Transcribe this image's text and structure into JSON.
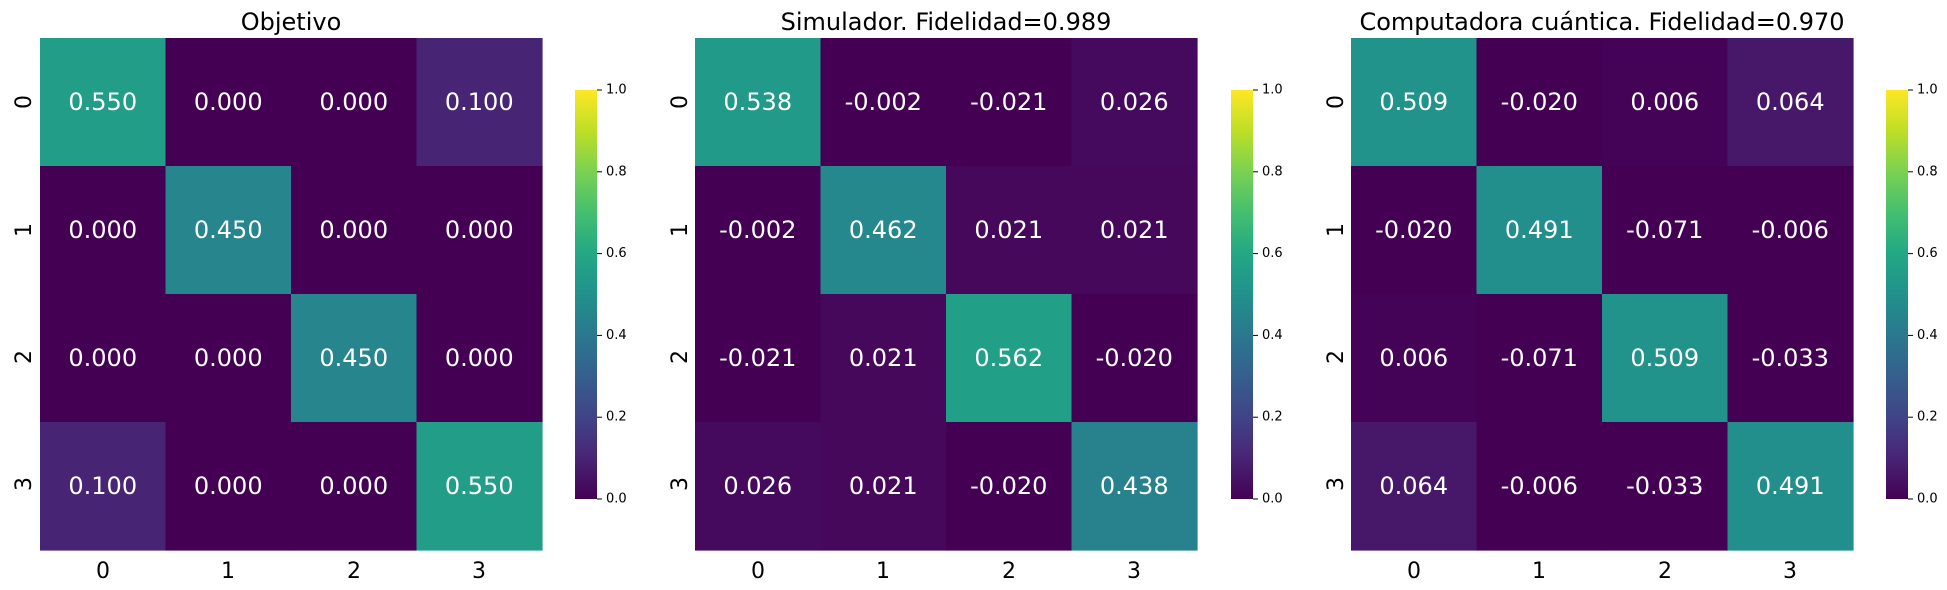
{
  "chart_data": [
    {
      "type": "heatmap",
      "title": "Objetivo",
      "x_ticks": [
        "0",
        "1",
        "2",
        "3"
      ],
      "y_ticks": [
        "0",
        "1",
        "2",
        "3"
      ],
      "values": [
        [
          0.55,
          0.0,
          0.0,
          0.1
        ],
        [
          0.0,
          0.45,
          0.0,
          0.0
        ],
        [
          0.0,
          0.0,
          0.45,
          0.0
        ],
        [
          0.1,
          0.0,
          0.0,
          0.55
        ]
      ],
      "annotations": [
        [
          "0.550",
          "0.000",
          "0.000",
          "0.100"
        ],
        [
          "0.000",
          "0.450",
          "0.000",
          "0.000"
        ],
        [
          "0.000",
          "0.000",
          "0.450",
          "0.000"
        ],
        [
          "0.100",
          "0.000",
          "0.000",
          "0.550"
        ]
      ],
      "vmin": 0.0,
      "vmax": 1.0,
      "colormap": "viridis",
      "colorbar_ticks": [
        "0.0",
        "0.2",
        "0.4",
        "0.6",
        "0.8",
        "1.0"
      ]
    },
    {
      "type": "heatmap",
      "title": "Simulador.  Fidelidad=0.989",
      "x_ticks": [
        "0",
        "1",
        "2",
        "3"
      ],
      "y_ticks": [
        "0",
        "1",
        "2",
        "3"
      ],
      "values": [
        [
          0.538,
          -0.002,
          -0.021,
          0.026
        ],
        [
          -0.002,
          0.462,
          0.021,
          0.021
        ],
        [
          -0.021,
          0.021,
          0.562,
          -0.02
        ],
        [
          0.026,
          0.021,
          -0.02,
          0.438
        ]
      ],
      "annotations": [
        [
          "0.538",
          "-0.002",
          "-0.021",
          "0.026"
        ],
        [
          "-0.002",
          "0.462",
          "0.021",
          "0.021"
        ],
        [
          "-0.021",
          "0.021",
          "0.562",
          "-0.020"
        ],
        [
          "0.026",
          "0.021",
          "-0.020",
          "0.438"
        ]
      ],
      "vmin": 0.0,
      "vmax": 1.0,
      "colormap": "viridis",
      "colorbar_ticks": [
        "0.0",
        "0.2",
        "0.4",
        "0.6",
        "0.8",
        "1.0"
      ]
    },
    {
      "type": "heatmap",
      "title": "Computadora cuántica. Fidelidad=0.970",
      "x_ticks": [
        "0",
        "1",
        "2",
        "3"
      ],
      "y_ticks": [
        "0",
        "1",
        "2",
        "3"
      ],
      "values": [
        [
          0.509,
          -0.02,
          0.006,
          0.064
        ],
        [
          -0.02,
          0.491,
          -0.071,
          -0.006
        ],
        [
          0.006,
          -0.071,
          0.509,
          -0.033
        ],
        [
          0.064,
          -0.006,
          -0.033,
          0.491
        ]
      ],
      "annotations": [
        [
          "0.509",
          "-0.020",
          "0.006",
          "0.064"
        ],
        [
          "-0.020",
          "0.491",
          "-0.071",
          "-0.006"
        ],
        [
          "0.006",
          "-0.071",
          "0.509",
          "-0.033"
        ],
        [
          "0.064",
          "-0.006",
          "-0.033",
          "0.491"
        ]
      ],
      "vmin": 0.0,
      "vmax": 1.0,
      "colormap": "viridis",
      "colorbar_ticks": [
        "0.0",
        "0.2",
        "0.4",
        "0.6",
        "0.8",
        "1.0"
      ]
    }
  ]
}
